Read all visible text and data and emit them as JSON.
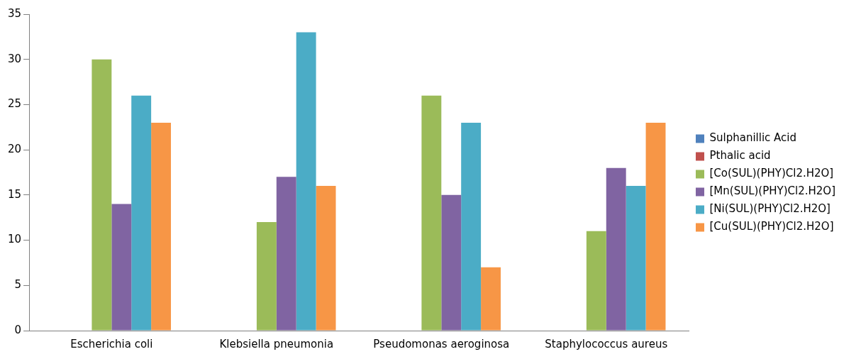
{
  "chart_data": {
    "type": "bar",
    "categories": [
      "Escherichia coli",
      "Klebsiella pneumonia",
      "Pseudomonas aeroginosa",
      "Staphylococcus aureus"
    ],
    "series": [
      {
        "name": "Sulphanillic Acid",
        "color": "#4f81bd",
        "values": [
          0,
          0,
          0,
          0
        ]
      },
      {
        "name": "Pthalic acid",
        "color": "#c0504d",
        "values": [
          0,
          0,
          0,
          0
        ]
      },
      {
        "name": "[Co(SUL)(PHY)Cl2.H2O]",
        "color": "#9bbb59",
        "values": [
          30,
          12,
          26,
          11
        ]
      },
      {
        "name": "[Mn(SUL)(PHY)Cl2.H2O]",
        "color": "#8064a2",
        "values": [
          14,
          17,
          15,
          18
        ]
      },
      {
        "name": "[Ni(SUL)(PHY)Cl2.H2O]",
        "color": "#4bacc6",
        "values": [
          26,
          33,
          23,
          16
        ]
      },
      {
        "name": "[Cu(SUL)(PHY)Cl2.H2O]",
        "color": "#f79646",
        "values": [
          23,
          16,
          7,
          23
        ]
      }
    ],
    "ylim": [
      0,
      35
    ],
    "yticks": [
      0,
      5,
      10,
      15,
      20,
      25,
      30,
      35
    ],
    "grid": false,
    "legend": "right"
  }
}
